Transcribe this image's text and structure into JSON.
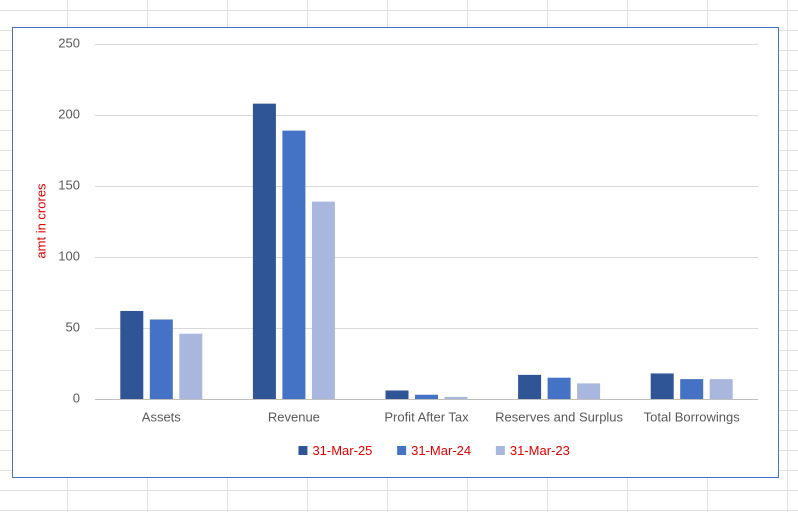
{
  "chart_data": {
    "type": "bar",
    "y_label": "amt in crores",
    "categories": [
      "Assets",
      "Revenue",
      "Profit After Tax",
      "Reserves and Surplus",
      "Total Borrowings"
    ],
    "series": [
      {
        "name": "31-Mar-25",
        "color": "#2f5597",
        "values": [
          62,
          208,
          6,
          17,
          18
        ]
      },
      {
        "name": "31-Mar-24",
        "color": "#4472c4",
        "values": [
          56,
          189,
          3,
          15,
          14
        ]
      },
      {
        "name": "31-Mar-23",
        "color": "#a9b6dd",
        "values": [
          46,
          139,
          1.5,
          11,
          14
        ]
      }
    ],
    "ylim": [
      0,
      250
    ],
    "yticks": [
      0,
      50,
      100,
      150,
      200,
      250
    ],
    "grid": true,
    "legend": "bottom"
  }
}
